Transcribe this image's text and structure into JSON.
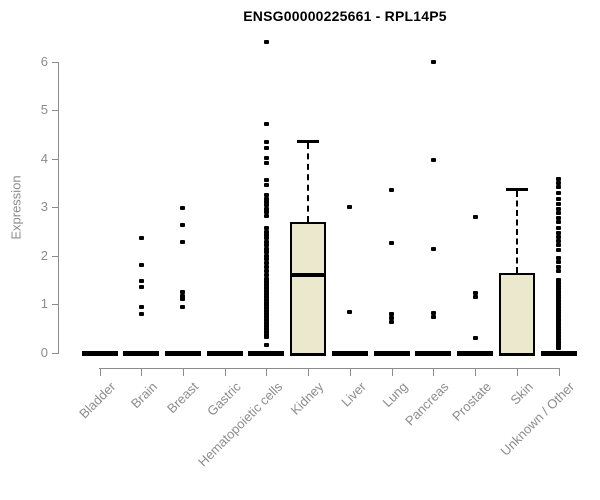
{
  "chart_data": {
    "type": "boxplot",
    "title": "ENSG00000225661 - RPL14P5",
    "xlabel": "",
    "ylabel": "Expression",
    "ylim": [
      0,
      6.5
    ],
    "y_ticks": [
      0,
      1,
      2,
      3,
      4,
      5,
      6
    ],
    "grid": false,
    "legend": "none",
    "colors": {
      "axis": "#8c8c8c",
      "box_fill": "#ece8cd",
      "box_border": "#000000",
      "points": "#000000",
      "title_text": "#000000"
    },
    "categories": [
      "Bladder",
      "Brain",
      "Breast",
      "Gastric",
      "Hematopoietic cells",
      "Kidney",
      "Liver",
      "Lung",
      "Pancreas",
      "Prostate",
      "Skin",
      "Unknown / Other"
    ],
    "series": [
      {
        "name": "Bladder",
        "q1": 0,
        "median": 0,
        "q3": 0,
        "whisker_low": 0,
        "whisker_high": 0,
        "points": []
      },
      {
        "name": "Brain",
        "q1": 0,
        "median": 0,
        "q3": 0,
        "whisker_low": 0,
        "whisker_high": 0,
        "points": [
          2.37,
          1.81,
          1.48,
          1.36,
          0.95,
          0.8
        ]
      },
      {
        "name": "Breast",
        "q1": 0,
        "median": 0,
        "q3": 0,
        "whisker_low": 0,
        "whisker_high": 0,
        "points": [
          2.99,
          2.64,
          2.29,
          1.26,
          1.18,
          1.11,
          0.95
        ]
      },
      {
        "name": "Gastric",
        "q1": 0,
        "median": 0,
        "q3": 0,
        "whisker_low": 0,
        "whisker_high": 0,
        "points": []
      },
      {
        "name": "Hematopoietic cells",
        "q1": 0,
        "median": 0,
        "q3": 0,
        "whisker_low": 0,
        "whisker_high": 0,
        "points": [
          6.41,
          4.72,
          4.35,
          4.22,
          4.02,
          3.92,
          3.57,
          3.46,
          3.26,
          3.18,
          3.11,
          3.04,
          2.97,
          2.9,
          2.83,
          2.58,
          2.5,
          2.43,
          2.36,
          2.29,
          2.22,
          2.15,
          2.08,
          2.0,
          1.93,
          1.86,
          1.78,
          1.68,
          1.6,
          1.53,
          1.46,
          1.4,
          1.34,
          1.28,
          1.22,
          1.16,
          1.1,
          1.04,
          0.98,
          0.92,
          0.86,
          0.8,
          0.74,
          0.68,
          0.62,
          0.56,
          0.5,
          0.44,
          0.38,
          0.32,
          0.16
        ]
      },
      {
        "name": "Kidney",
        "q1": 0,
        "median": 1.61,
        "q3": 2.69,
        "whisker_low": 0,
        "whisker_high": 4.39,
        "points": []
      },
      {
        "name": "Liver",
        "q1": 0,
        "median": 0,
        "q3": 0,
        "whisker_low": 0,
        "whisker_high": 0,
        "points": [
          3.0,
          0.85
        ]
      },
      {
        "name": "Lung",
        "q1": 0,
        "median": 0,
        "q3": 0,
        "whisker_low": 0,
        "whisker_high": 0,
        "points": [
          3.36,
          2.27,
          0.8,
          0.72,
          0.64
        ]
      },
      {
        "name": "Pancreas",
        "q1": 0,
        "median": 0,
        "q3": 0,
        "whisker_low": 0,
        "whisker_high": 0,
        "points": [
          6.0,
          3.98,
          2.14,
          0.82,
          0.74
        ]
      },
      {
        "name": "Prostate",
        "q1": 0,
        "median": 0,
        "q3": 0,
        "whisker_low": 0,
        "whisker_high": 0,
        "points": [
          2.8,
          1.24,
          1.15,
          0.31
        ]
      },
      {
        "name": "Skin",
        "q1": 0,
        "median": 0,
        "q3": 1.65,
        "whisker_low": 0,
        "whisker_high": 3.4,
        "points": []
      },
      {
        "name": "Unknown / Other",
        "q1": 0,
        "median": 0,
        "q3": 0,
        "whisker_low": 0,
        "whisker_high": 0,
        "points": [
          3.58,
          3.5,
          3.42,
          3.3,
          3.18,
          3.06,
          2.96,
          2.88,
          2.78,
          2.7,
          2.58,
          2.48,
          2.4,
          2.3,
          2.22,
          2.12,
          1.96,
          1.88,
          1.78,
          1.68,
          1.5,
          1.44,
          1.38,
          1.31,
          1.25,
          1.19,
          1.13,
          1.07,
          1.01,
          0.95,
          0.89,
          0.83,
          0.77,
          0.71,
          0.65,
          0.59,
          0.53,
          0.47,
          0.41,
          0.35,
          0.29,
          0.23,
          0.16,
          0.1
        ]
      }
    ]
  }
}
